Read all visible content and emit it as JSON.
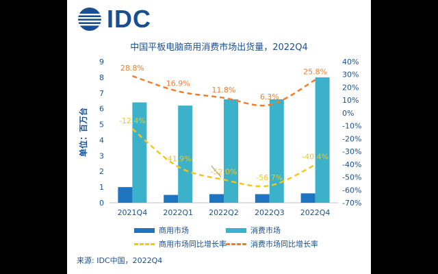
{
  "logo": {
    "text": "IDC",
    "color": "#1a4f8f"
  },
  "title": "中国平板电脑商用消费市场出货量，2022Q4",
  "source": "来源: IDC中国，2022Q4",
  "colors": {
    "commercial": "#1f74c0",
    "consumer": "#3bb2c9",
    "commercial_yoy": "#f5c518",
    "consumer_yoy": "#ef7d2c",
    "text": "#1a4f8f"
  },
  "chart_data": {
    "type": "bar",
    "title": "中国平板电脑商用消费市场出货量，2022Q4",
    "ylabel": "单位：百万台",
    "categories": [
      "2021Q4",
      "2022Q1",
      "2022Q2",
      "2022Q3",
      "2022Q4"
    ],
    "ylim": [
      0,
      9
    ],
    "yticks": [
      "0",
      "1",
      "2",
      "3",
      "4",
      "5",
      "6",
      "7",
      "8",
      "9"
    ],
    "y2lim": [
      -70,
      40
    ],
    "y2ticks": [
      "-70%",
      "-60%",
      "-50%",
      "-40%",
      "-30%",
      "-20%",
      "-10%",
      "0%",
      "10%",
      "20%",
      "30%",
      "40%"
    ],
    "series": [
      {
        "name": "商用市场",
        "kind": "bar",
        "axis": "left",
        "values": [
          1.0,
          0.5,
          0.55,
          0.55,
          0.6
        ]
      },
      {
        "name": "消费市场",
        "kind": "bar",
        "axis": "left",
        "values": [
          6.4,
          6.2,
          6.6,
          6.6,
          8.0
        ]
      },
      {
        "name": "商用市场同比增长率",
        "kind": "line",
        "axis": "right",
        "values": [
          -12.4,
          -41.9,
          -52.0,
          -56.7,
          -40.4
        ],
        "labels": [
          "-12.4%",
          "-41.9%",
          "-52.0%",
          "-56.7%",
          "-40.4%"
        ]
      },
      {
        "name": "消费市场同比增长率",
        "kind": "line",
        "axis": "right",
        "values": [
          28.8,
          16.9,
          11.8,
          6.3,
          25.8
        ],
        "labels": [
          "28.8%",
          "16.9%",
          "11.8%",
          "6.3%",
          "25.8%"
        ]
      }
    ],
    "legend_position": "bottom",
    "grid": false
  }
}
